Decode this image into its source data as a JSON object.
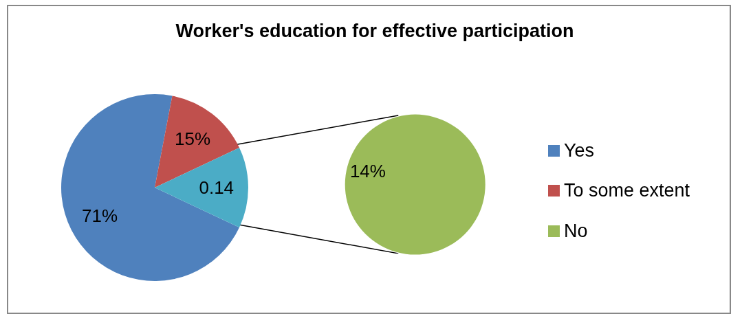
{
  "chart_data": [
    {
      "type": "pie",
      "title": "Worker's education for effective participation",
      "categories": [
        "Yes",
        "To some extent",
        null
      ],
      "values": [
        71,
        15,
        14
      ],
      "colors": [
        "#4f81bd",
        "#c0504d",
        "#4bacc6"
      ],
      "value_labels": [
        "71%",
        "15%",
        null
      ],
      "annotations": [
        "0.14"
      ],
      "legend": "right"
    },
    {
      "type": "pie",
      "categories": [
        "No"
      ],
      "values": [
        14
      ],
      "colors": [
        "#9bbb59"
      ],
      "value_labels": [
        "14%"
      ]
    }
  ]
}
